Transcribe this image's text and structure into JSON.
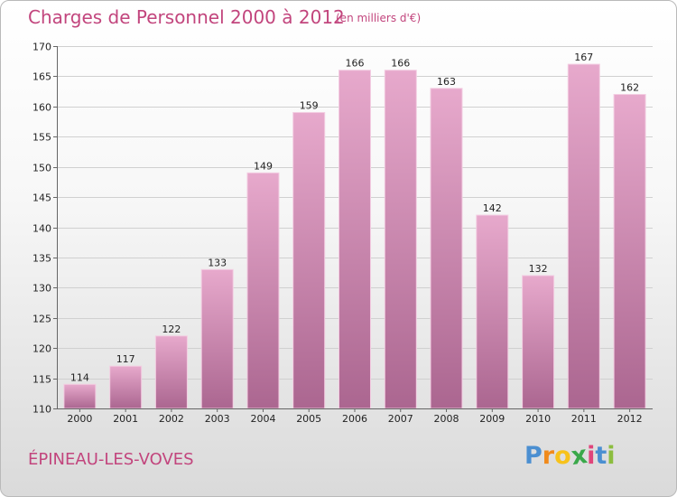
{
  "chart_data": {
    "type": "bar",
    "title": "Charges de Personnel 2000 à 2012",
    "subtitle": "(en milliers d'€)",
    "categories": [
      "2000",
      "2001",
      "2002",
      "2003",
      "2004",
      "2005",
      "2006",
      "2007",
      "2008",
      "2009",
      "2010",
      "2011",
      "2012"
    ],
    "values": [
      114,
      117,
      122,
      133,
      149,
      159,
      166,
      166,
      163,
      142,
      132,
      167,
      162
    ],
    "ylim": [
      110,
      170
    ],
    "yticks": [
      110,
      115,
      120,
      125,
      130,
      135,
      140,
      145,
      150,
      155,
      160,
      165,
      170
    ],
    "grid": true,
    "colors": {
      "bar_light": "#e7a9cc",
      "bar_dark": "#ab6690",
      "title": "#c2457d"
    }
  },
  "footer": {
    "town": "ÉPINEAU-LES-VOVES",
    "logo_letters": [
      "P",
      "r",
      "o",
      "x",
      "i",
      "t",
      "i"
    ],
    "logo_colors": [
      "#4b8fd1",
      "#f08a1c",
      "#f7c21b",
      "#3aa84a",
      "#e0457b",
      "#4b8fd1",
      "#8cbd3f"
    ]
  }
}
